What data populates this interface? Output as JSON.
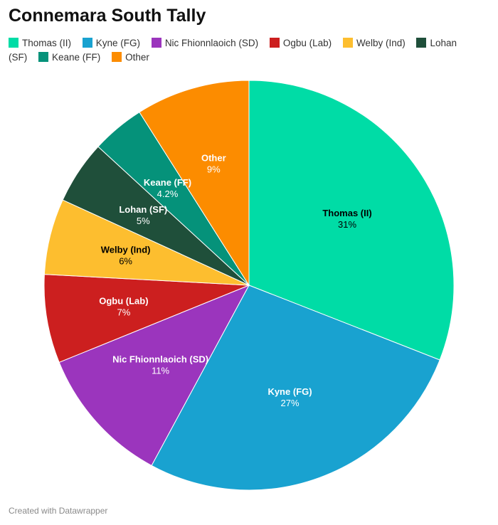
{
  "chart_data": {
    "type": "pie",
    "title": "Connemara South Tally",
    "start_angle_deg": 0,
    "direction": "clockwise",
    "slices": [
      {
        "label": "Thomas (II)",
        "value": 31,
        "display": "31%",
        "color": "#00dca6",
        "label_color": "#000000"
      },
      {
        "label": "Kyne (FG)",
        "value": 27,
        "display": "27%",
        "color": "#19a2d0",
        "label_color": "#ffffff"
      },
      {
        "label": "Nic Fhionnlaoich (SD)",
        "value": 11,
        "display": "11%",
        "color": "#9b35bd",
        "label_color": "#ffffff"
      },
      {
        "label": "Ogbu (Lab)",
        "value": 7,
        "display": "7%",
        "color": "#cc1f1f",
        "label_color": "#ffffff"
      },
      {
        "label": "Welby (Ind)",
        "value": 6,
        "display": "6%",
        "color": "#fdbe2f",
        "label_color": "#000000"
      },
      {
        "label": "Lohan (SF)",
        "value": 5,
        "display": "5%",
        "color": "#1f4f3a",
        "label_color": "#ffffff"
      },
      {
        "label": "Keane (FF)",
        "value": 4.2,
        "display": "4.2%",
        "color": "#05927a",
        "label_color": "#ffffff"
      },
      {
        "label": "Other",
        "value": 9,
        "display": "9%",
        "color": "#fc8c00",
        "label_color": "#ffffff"
      }
    ]
  },
  "footer": {
    "credit": "Created with Datawrapper"
  }
}
